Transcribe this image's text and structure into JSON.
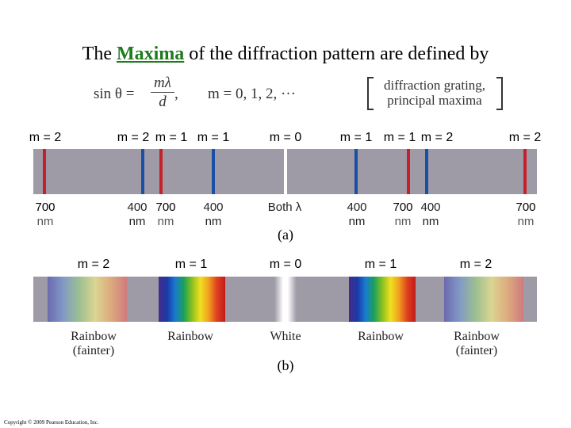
{
  "slide": {
    "title_before": "The ",
    "title_keyword": "Maxima",
    "title_after": " of the diffraction pattern are defined by",
    "copyright": "Copyright © 2009 Pearson Education, Inc."
  },
  "equation": {
    "lhs": "sin θ  =",
    "numerator": "mλ",
    "denominator": "d",
    "comma": ",",
    "m_def": "m  =  0, 1, 2, ···",
    "note_line1": "diffraction grating,",
    "note_line2": "principal maxima"
  },
  "panel_a": {
    "caption": "(a)",
    "order_labels": [
      "m = 2",
      "m = 2",
      "m = 1",
      "m = 1",
      "m = 0",
      "m = 1",
      "m = 1",
      "m = 2",
      "m = 2"
    ],
    "wavelength_labels": [
      {
        "value": "700",
        "unit": "nm"
      },
      {
        "value": "400",
        "unit": "nm"
      },
      {
        "value": "700",
        "unit": "nm"
      },
      {
        "value": "400",
        "unit": "nm"
      },
      {
        "value": "Both λ",
        "unit": ""
      },
      {
        "value": "400",
        "unit": "nm"
      },
      {
        "value": "700",
        "unit": "nm"
      },
      {
        "value": "400",
        "unit": "nm"
      },
      {
        "value": "700",
        "unit": "nm"
      }
    ],
    "line_colors": {
      "red": "#c8202a",
      "blue": "#1a4fa8",
      "white": "#ffffff",
      "band": "#9e9aa6"
    }
  },
  "panel_b": {
    "caption": "(b)",
    "order_labels": [
      "m = 2",
      "m = 1",
      "m = 0",
      "m = 1",
      "m = 2"
    ],
    "region_labels": [
      {
        "line1": "Rainbow",
        "line2": "(fainter)"
      },
      {
        "line1": "Rainbow",
        "line2": ""
      },
      {
        "line1": "White",
        "line2": ""
      },
      {
        "line1": "Rainbow",
        "line2": ""
      },
      {
        "line1": "Rainbow",
        "line2": "(fainter)"
      }
    ]
  }
}
